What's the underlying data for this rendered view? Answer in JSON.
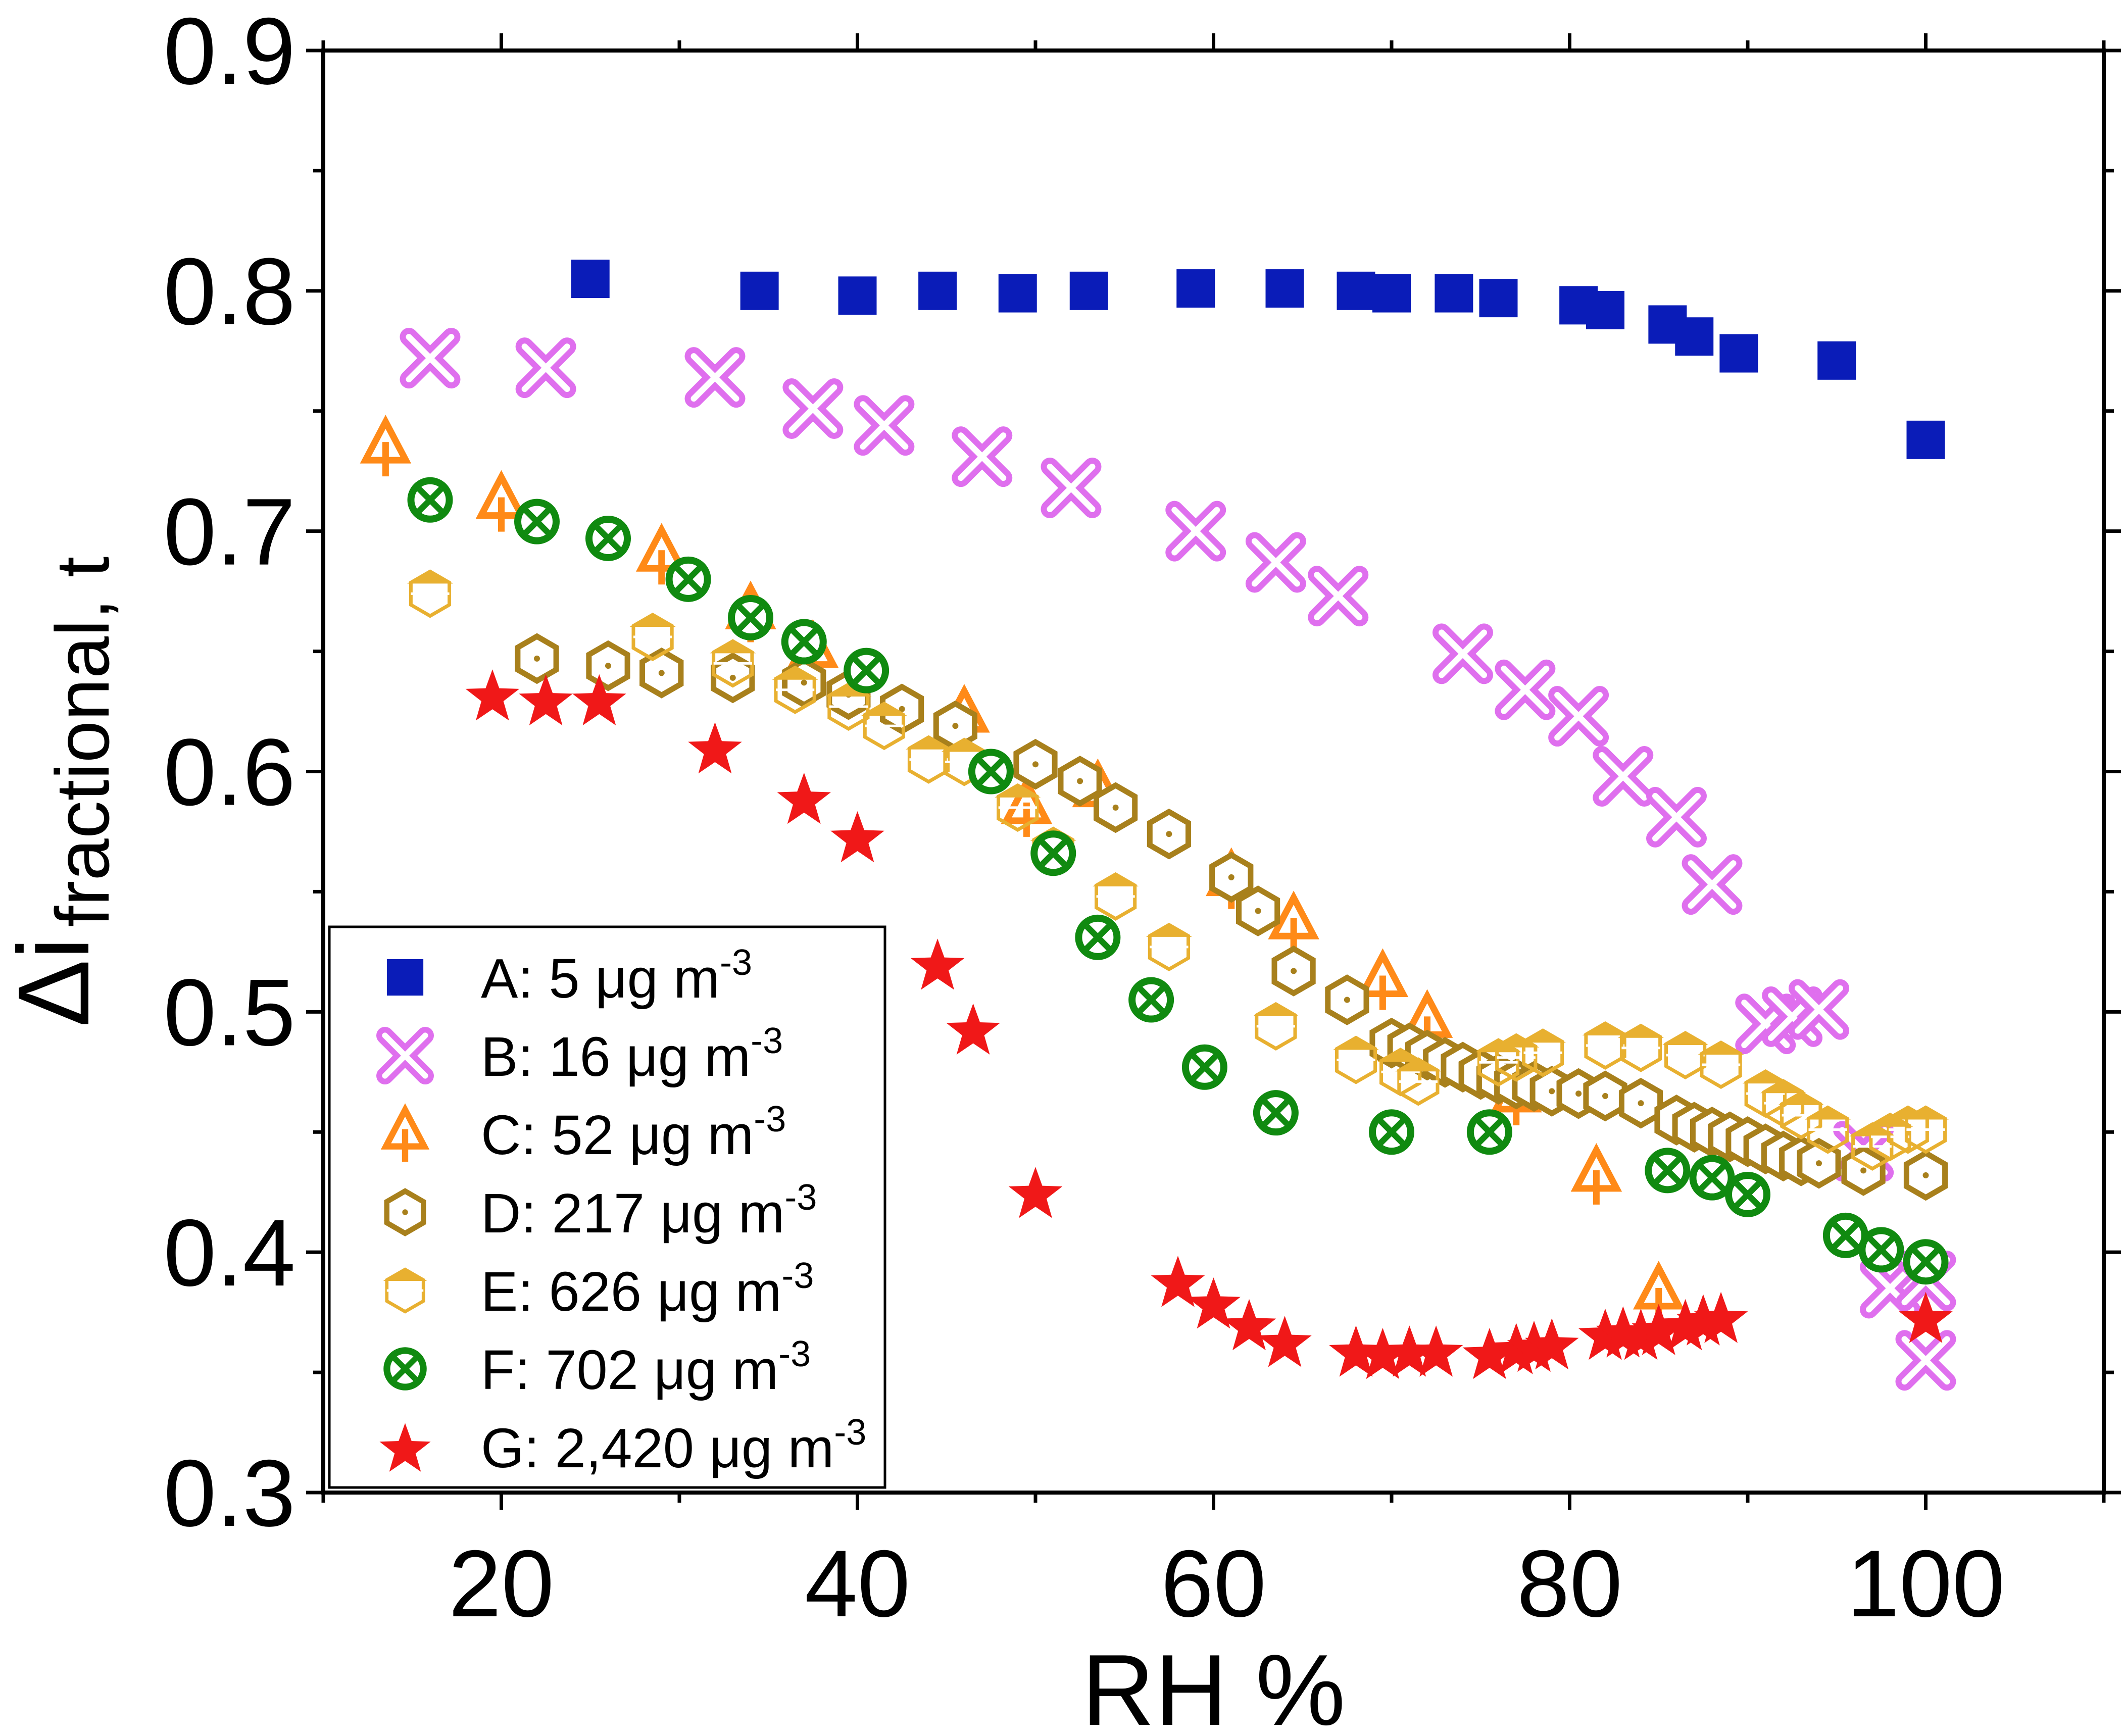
{
  "chart_data": {
    "type": "scatter",
    "xlabel": "RH %",
    "ylabel_main": "Δi",
    "ylabel_sub": "fractional, t",
    "xlim": [
      10,
      110
    ],
    "ylim": [
      0.3,
      0.9
    ],
    "x_ticks": [
      20,
      40,
      60,
      80,
      100
    ],
    "x_tick_labels": [
      "20",
      "40",
      "60",
      "80",
      "100"
    ],
    "y_ticks": [
      0.3,
      0.4,
      0.5,
      0.6,
      0.7,
      0.8,
      0.9
    ],
    "y_tick_labels": [
      "0.3",
      "0.4",
      "0.5",
      "0.6",
      "0.7",
      "0.8",
      "0.9"
    ],
    "grid": false,
    "legend_position": "bottom-left",
    "series": [
      {
        "name": "A: 5 μg m",
        "sup": "-3",
        "marker": "square",
        "color": "#0a1cb8",
        "points": [
          [
            25,
            0.805
          ],
          [
            34.5,
            0.8
          ],
          [
            40,
            0.798
          ],
          [
            44.5,
            0.8
          ],
          [
            49,
            0.799
          ],
          [
            53,
            0.8
          ],
          [
            59,
            0.801
          ],
          [
            64,
            0.801
          ],
          [
            68,
            0.8
          ],
          [
            70,
            0.799
          ],
          [
            73.5,
            0.799
          ],
          [
            76,
            0.797
          ],
          [
            80.5,
            0.794
          ],
          [
            82,
            0.792
          ],
          [
            85.5,
            0.786
          ],
          [
            87,
            0.781
          ],
          [
            89.5,
            0.774
          ],
          [
            95,
            0.771
          ],
          [
            100,
            0.738
          ]
        ]
      },
      {
        "name": "B: 16 μg m",
        "sup": "-3",
        "marker": "crossx",
        "color": "#df6fee",
        "points": [
          [
            16,
            0.772
          ],
          [
            22.5,
            0.768
          ],
          [
            32,
            0.764
          ],
          [
            37.5,
            0.751
          ],
          [
            41.5,
            0.744
          ],
          [
            47,
            0.731
          ],
          [
            52,
            0.718
          ],
          [
            59,
            0.7
          ],
          [
            63.5,
            0.687
          ],
          [
            67,
            0.673
          ],
          [
            74,
            0.649
          ],
          [
            77.5,
            0.634
          ],
          [
            80.5,
            0.623
          ],
          [
            83,
            0.598
          ],
          [
            86,
            0.581
          ],
          [
            88,
            0.553
          ],
          [
            91,
            0.495
          ],
          [
            92.5,
            0.498
          ],
          [
            94,
            0.501
          ],
          [
            96.5,
            0.442
          ],
          [
            98,
            0.385
          ],
          [
            100,
            0.388
          ],
          [
            100,
            0.355
          ]
        ]
      },
      {
        "name": "C: 52 μg m",
        "sup": "-3",
        "marker": "triangle",
        "color": "#ff8a18",
        "points": [
          [
            13.5,
            0.735
          ],
          [
            20,
            0.712
          ],
          [
            29,
            0.69
          ],
          [
            34,
            0.666
          ],
          [
            37.5,
            0.65
          ],
          [
            46,
            0.623
          ],
          [
            49.5,
            0.585
          ],
          [
            53.5,
            0.592
          ],
          [
            61,
            0.555
          ],
          [
            64.5,
            0.537
          ],
          [
            69.5,
            0.513
          ],
          [
            72,
            0.496
          ],
          [
            77,
            0.465
          ],
          [
            81.5,
            0.432
          ],
          [
            85,
            0.383
          ]
        ]
      },
      {
        "name": "D: 217 μg m",
        "sup": "-3",
        "marker": "hexagon",
        "color": "#a8801c",
        "points": [
          [
            22,
            0.647
          ],
          [
            26,
            0.644
          ],
          [
            29,
            0.641
          ],
          [
            33,
            0.639
          ],
          [
            37,
            0.637
          ],
          [
            39.5,
            0.632
          ],
          [
            42.5,
            0.626
          ],
          [
            45.5,
            0.619
          ],
          [
            50,
            0.603
          ],
          [
            52.5,
            0.596
          ],
          [
            54.5,
            0.585
          ],
          [
            57.5,
            0.574
          ],
          [
            61,
            0.556
          ],
          [
            62.5,
            0.542
          ],
          [
            64.5,
            0.517
          ],
          [
            67.5,
            0.505
          ],
          [
            70,
            0.487
          ],
          [
            71,
            0.485
          ],
          [
            72,
            0.482
          ],
          [
            73,
            0.479
          ],
          [
            74,
            0.477
          ],
          [
            75,
            0.474
          ],
          [
            76,
            0.472
          ],
          [
            77,
            0.47
          ],
          [
            78,
            0.469
          ],
          [
            79,
            0.467
          ],
          [
            80.5,
            0.466
          ],
          [
            82,
            0.465
          ],
          [
            84,
            0.462
          ],
          [
            86,
            0.455
          ],
          [
            87,
            0.452
          ],
          [
            88,
            0.45
          ],
          [
            89,
            0.448
          ],
          [
            90,
            0.446
          ],
          [
            91,
            0.443
          ],
          [
            92,
            0.44
          ],
          [
            93,
            0.438
          ],
          [
            94,
            0.437
          ],
          [
            96.5,
            0.434
          ],
          [
            100,
            0.432
          ]
        ]
      },
      {
        "name": "E: 626 μg m",
        "sup": "-3",
        "marker": "halfhex",
        "color": "#e8b030",
        "points": [
          [
            16,
            0.674
          ],
          [
            28.5,
            0.656
          ],
          [
            33,
            0.645
          ],
          [
            36.5,
            0.634
          ],
          [
            39.5,
            0.627
          ],
          [
            41.5,
            0.619
          ],
          [
            44,
            0.605
          ],
          [
            46,
            0.604
          ],
          [
            49,
            0.585
          ],
          [
            51,
            0.567
          ],
          [
            54.5,
            0.548
          ],
          [
            57.5,
            0.527
          ],
          [
            63.5,
            0.494
          ],
          [
            68,
            0.48
          ],
          [
            70.5,
            0.475
          ],
          [
            71.5,
            0.471
          ],
          [
            76,
            0.479
          ],
          [
            77,
            0.481
          ],
          [
            78.5,
            0.483
          ],
          [
            82,
            0.486
          ],
          [
            84,
            0.485
          ],
          [
            86.5,
            0.482
          ],
          [
            88.5,
            0.478
          ],
          [
            91,
            0.466
          ],
          [
            92,
            0.462
          ],
          [
            93,
            0.457
          ],
          [
            94.5,
            0.451
          ],
          [
            97,
            0.444
          ],
          [
            98,
            0.448
          ],
          [
            99,
            0.451
          ],
          [
            100,
            0.451
          ]
        ]
      },
      {
        "name": "F: 702 μg m",
        "sup": "-3",
        "marker": "circlex",
        "color": "#108a10",
        "points": [
          [
            16,
            0.713
          ],
          [
            22,
            0.704
          ],
          [
            26,
            0.697
          ],
          [
            30.5,
            0.68
          ],
          [
            34,
            0.664
          ],
          [
            37,
            0.654
          ],
          [
            40.5,
            0.642
          ],
          [
            47.5,
            0.6
          ],
          [
            51,
            0.566
          ],
          [
            53.5,
            0.531
          ],
          [
            56.5,
            0.505
          ],
          [
            59.5,
            0.477
          ],
          [
            63.5,
            0.458
          ],
          [
            70,
            0.45
          ],
          [
            75.5,
            0.45
          ],
          [
            85.5,
            0.434
          ],
          [
            88,
            0.431
          ],
          [
            90,
            0.424
          ],
          [
            95.5,
            0.407
          ],
          [
            97.5,
            0.401
          ],
          [
            100,
            0.396
          ]
        ]
      },
      {
        "name": "G: 2,420 μg m",
        "sup": "-3",
        "marker": "star",
        "color": "#f01818",
        "points": [
          [
            19.5,
            0.632
          ],
          [
            22.5,
            0.63
          ],
          [
            25.5,
            0.63
          ],
          [
            32,
            0.61
          ],
          [
            37,
            0.589
          ],
          [
            40,
            0.573
          ],
          [
            44.5,
            0.52
          ],
          [
            46.5,
            0.493
          ],
          [
            50,
            0.425
          ],
          [
            58,
            0.388
          ],
          [
            60,
            0.379
          ],
          [
            62,
            0.37
          ],
          [
            64,
            0.363
          ],
          [
            68,
            0.359
          ],
          [
            69.5,
            0.358
          ],
          [
            71,
            0.359
          ],
          [
            72.5,
            0.359
          ],
          [
            75.5,
            0.358
          ],
          [
            77,
            0.36
          ],
          [
            78,
            0.361
          ],
          [
            79,
            0.362
          ],
          [
            82,
            0.366
          ],
          [
            83,
            0.367
          ],
          [
            84,
            0.366
          ],
          [
            85,
            0.368
          ],
          [
            86.5,
            0.37
          ],
          [
            87.5,
            0.372
          ],
          [
            88.5,
            0.373
          ],
          [
            100,
            0.373
          ]
        ]
      }
    ]
  }
}
